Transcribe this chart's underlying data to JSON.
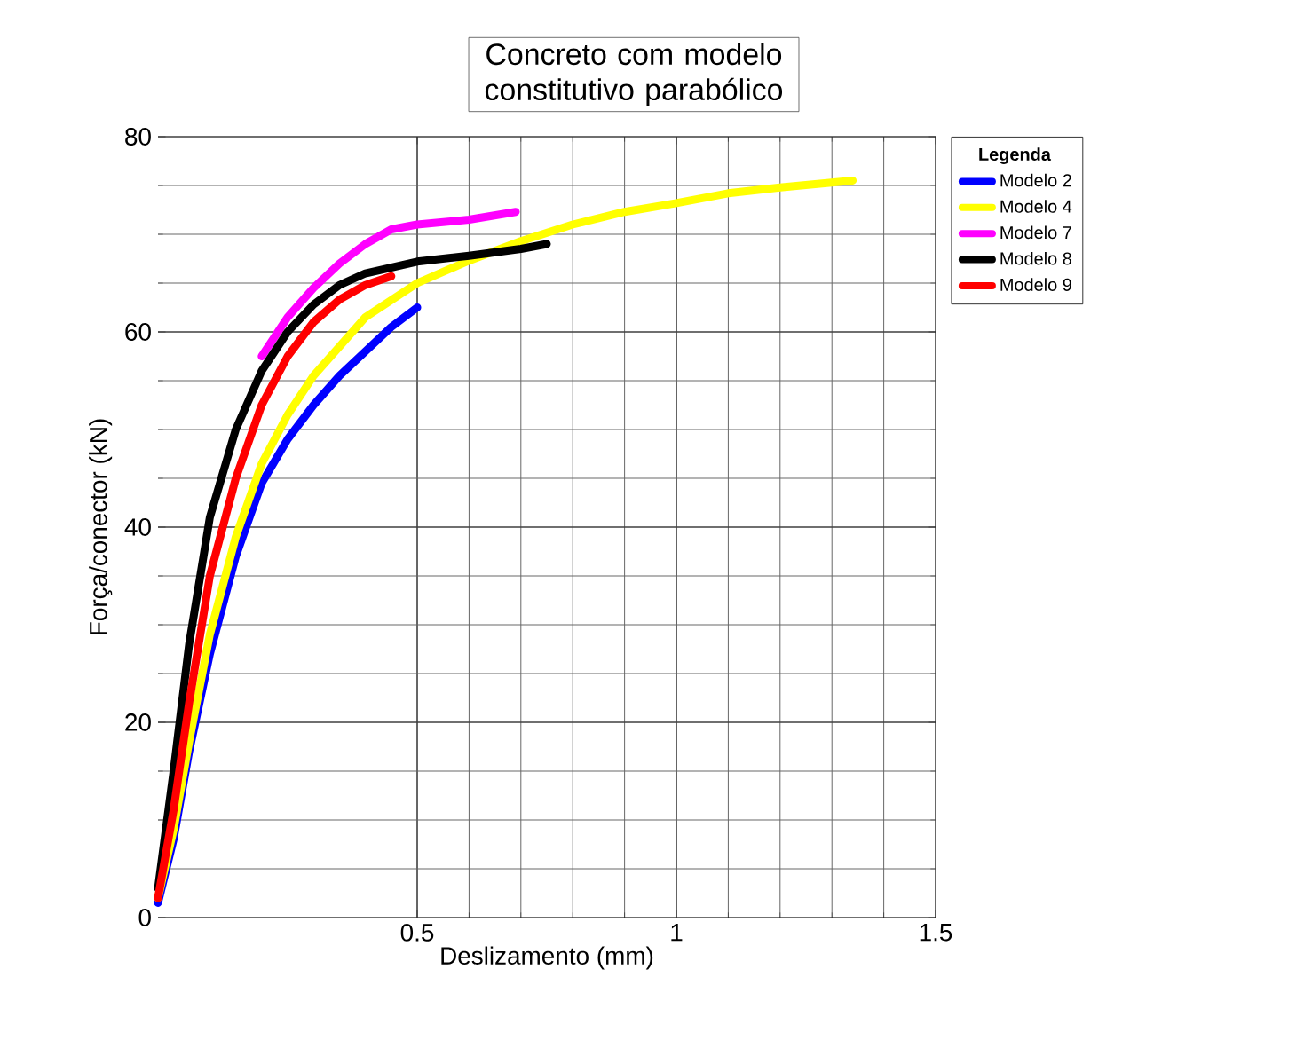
{
  "chart_data": {
    "type": "line",
    "title": "Concreto com modelo constitutivo parabólico",
    "xlabel": "Deslizamento (mm)",
    "ylabel": "Força/conector (kN)",
    "legend_title": "Legenda",
    "xlim": [
      0,
      1.5
    ],
    "ylim": [
      0,
      80
    ],
    "xticks": [
      0.5,
      1,
      1.5
    ],
    "yticks": [
      0,
      20,
      40,
      60,
      80
    ],
    "grid": true,
    "legend": "right",
    "series": [
      {
        "name": "Modelo 2",
        "color": "#0000ff",
        "x": [
          0,
          0.03,
          0.06,
          0.1,
          0.15,
          0.2,
          0.25,
          0.3,
          0.35,
          0.4,
          0.45,
          0.5
        ],
        "values": [
          1.5,
          8,
          17,
          27,
          37,
          44.5,
          49,
          52.5,
          55.5,
          58,
          60.5,
          62.5
        ]
      },
      {
        "name": "Modelo 4",
        "color": "#ffff00",
        "x": [
          0,
          0.03,
          0.06,
          0.1,
          0.15,
          0.2,
          0.25,
          0.3,
          0.35,
          0.4,
          0.5,
          0.6,
          0.7,
          0.8,
          0.9,
          1.0,
          1.1,
          1.2,
          1.34
        ],
        "values": [
          2,
          9,
          18,
          29,
          39,
          46.5,
          51.5,
          55.5,
          58.5,
          61.5,
          65,
          67.3,
          69.3,
          71,
          72.3,
          73.2,
          74.2,
          74.8,
          75.5
        ]
      },
      {
        "name": "Modelo 7",
        "color": "#ff00ff",
        "x": [
          0.2,
          0.25,
          0.3,
          0.35,
          0.4,
          0.45,
          0.5,
          0.6,
          0.69
        ],
        "values": [
          57.5,
          61.5,
          64.5,
          67,
          69,
          70.5,
          71,
          71.5,
          72.3
        ]
      },
      {
        "name": "Modelo 8",
        "color": "#000000",
        "x": [
          0,
          0.03,
          0.06,
          0.1,
          0.15,
          0.2,
          0.25,
          0.3,
          0.35,
          0.4,
          0.5,
          0.6,
          0.7,
          0.75
        ],
        "values": [
          3,
          15,
          28,
          41,
          50,
          56,
          60,
          62.8,
          64.8,
          66,
          67.2,
          67.8,
          68.5,
          69
        ]
      },
      {
        "name": "Modelo 9",
        "color": "#ff0000",
        "x": [
          0,
          0.03,
          0.06,
          0.1,
          0.15,
          0.2,
          0.25,
          0.3,
          0.35,
          0.4,
          0.45
        ],
        "values": [
          2,
          11,
          22,
          35,
          45,
          52.5,
          57.5,
          61,
          63.3,
          64.8,
          65.7
        ]
      }
    ]
  }
}
